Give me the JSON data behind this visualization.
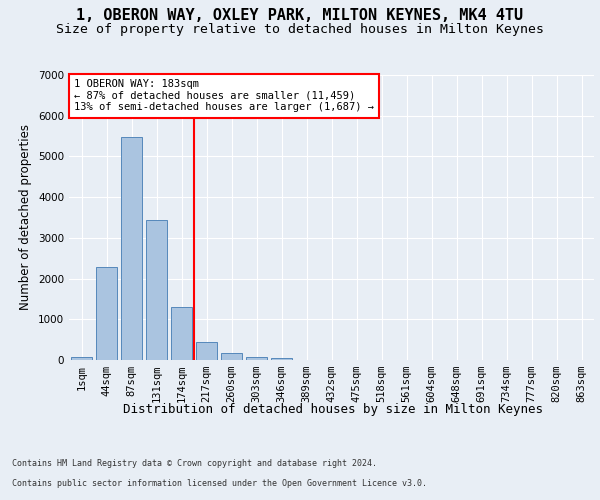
{
  "title1": "1, OBERON WAY, OXLEY PARK, MILTON KEYNES, MK4 4TU",
  "title2": "Size of property relative to detached houses in Milton Keynes",
  "xlabel": "Distribution of detached houses by size in Milton Keynes",
  "ylabel": "Number of detached properties",
  "footer1": "Contains HM Land Registry data © Crown copyright and database right 2024.",
  "footer2": "Contains public sector information licensed under the Open Government Licence v3.0.",
  "bar_labels": [
    "1sqm",
    "44sqm",
    "87sqm",
    "131sqm",
    "174sqm",
    "217sqm",
    "260sqm",
    "303sqm",
    "346sqm",
    "389sqm",
    "432sqm",
    "475sqm",
    "518sqm",
    "561sqm",
    "604sqm",
    "648sqm",
    "691sqm",
    "734sqm",
    "777sqm",
    "820sqm",
    "863sqm"
  ],
  "bar_values": [
    70,
    2290,
    5470,
    3440,
    1310,
    430,
    160,
    80,
    60,
    0,
    0,
    0,
    0,
    0,
    0,
    0,
    0,
    0,
    0,
    0,
    0
  ],
  "bar_color": "#aac4e0",
  "bar_edge_color": "#5588bb",
  "vline_x": 4.5,
  "vline_color": "red",
  "annotation_text": "1 OBERON WAY: 183sqm\n← 87% of detached houses are smaller (11,459)\n13% of semi-detached houses are larger (1,687) →",
  "annotation_box_color": "white",
  "annotation_box_edge": "red",
  "ylim": [
    0,
    7000
  ],
  "yticks": [
    0,
    1000,
    2000,
    3000,
    4000,
    5000,
    6000,
    7000
  ],
  "bg_color": "#e8eef5",
  "plot_bg_color": "#e8eef5",
  "grid_color": "white",
  "title1_fontsize": 11,
  "title2_fontsize": 9.5,
  "xlabel_fontsize": 9,
  "ylabel_fontsize": 8.5,
  "tick_fontsize": 7.5,
  "annotation_fontsize": 7.5,
  "footer_fontsize": 6.0
}
